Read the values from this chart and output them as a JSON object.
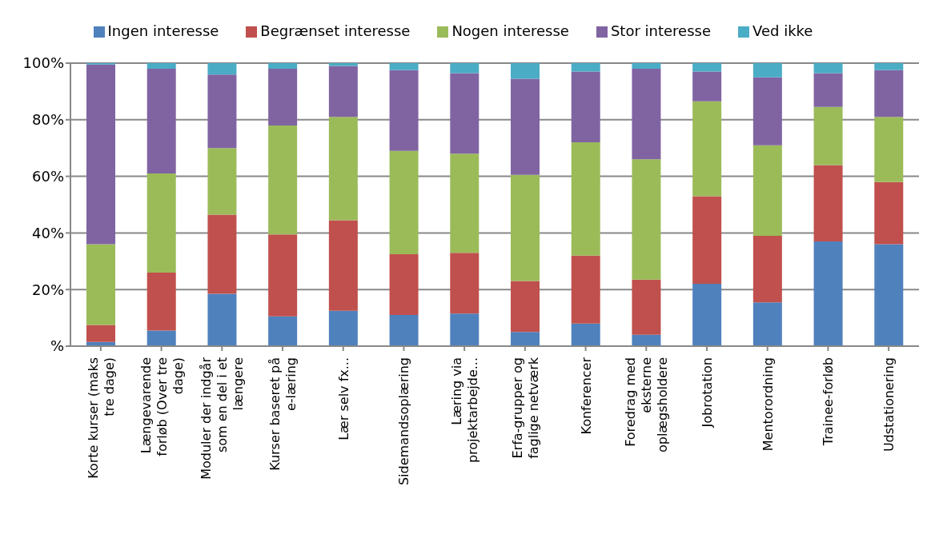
{
  "chart_data": {
    "type": "bar",
    "stacked": true,
    "categories": [
      "Korte kurser (maks tre dage)",
      "Længevarende forløb (Over tre dage)",
      "Moduler der indgår som en del i et længere",
      "Kurser baseret på e-læring",
      "Lær selv fx...",
      "Sidemandsoplæring",
      "Læring via projektarbejde...",
      "Erfa-grupper og faglige netværk",
      "Konferencer",
      "Foredrag med eksterne oplægsholdere",
      "Jobrotation",
      "Mentorordning",
      "Trainee-forløb",
      "Udstationering"
    ],
    "series": [
      {
        "name": "Ingen interesse",
        "color": "#4f81bd",
        "values": [
          1.5,
          5.5,
          18.5,
          10.5,
          12.5,
          11,
          11.5,
          5,
          8,
          4,
          22,
          15.5,
          37,
          36
        ]
      },
      {
        "name": "Begrænset interesse",
        "color": "#c0504d",
        "values": [
          6,
          20.5,
          28,
          29,
          32,
          21.5,
          21.5,
          18,
          24,
          19.5,
          31,
          23.5,
          27,
          22
        ]
      },
      {
        "name": "Nogen interesse",
        "color": "#9bbb59",
        "values": [
          28.5,
          35,
          23.5,
          38.5,
          36.5,
          36.5,
          35,
          37.5,
          40,
          42.5,
          33.5,
          32,
          20.5,
          23
        ]
      },
      {
        "name": "Stor interesse",
        "color": "#8064a2",
        "values": [
          63.5,
          37,
          26,
          20,
          18,
          28.5,
          28.5,
          34,
          25,
          32,
          10.5,
          24,
          12,
          16.5
        ]
      },
      {
        "name": "Ved ikke",
        "color": "#4bacc6",
        "values": [
          0.5,
          2,
          4,
          2,
          1,
          2.5,
          3.5,
          5.5,
          3,
          2,
          3,
          5,
          3.5,
          2.5
        ]
      }
    ],
    "ylim": [
      0,
      100
    ],
    "yticks": [
      {
        "value": 0,
        "label": "%"
      },
      {
        "value": 20,
        "label": "20%"
      },
      {
        "value": 40,
        "label": "40%"
      },
      {
        "value": 60,
        "label": "60%"
      },
      {
        "value": 80,
        "label": "80%"
      },
      {
        "value": 100,
        "label": "100%"
      }
    ],
    "grid": "y",
    "legend": "top"
  }
}
